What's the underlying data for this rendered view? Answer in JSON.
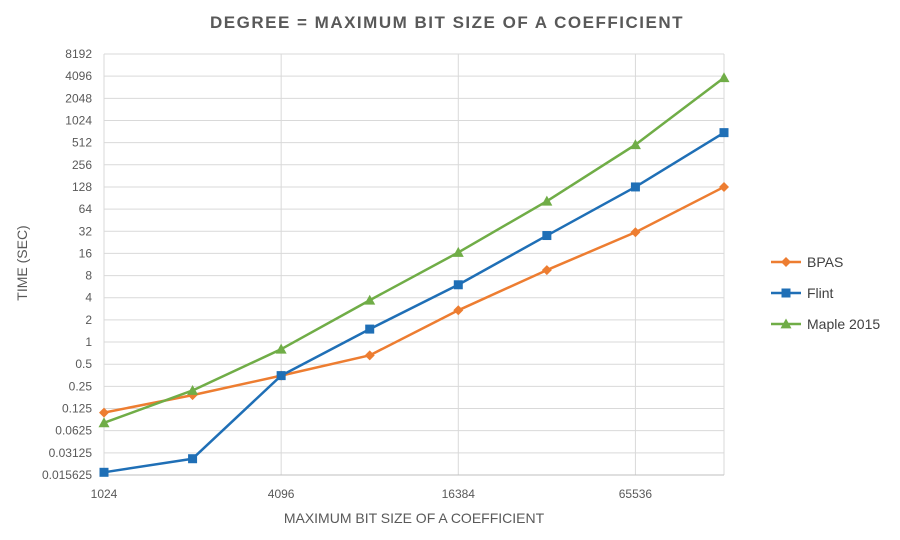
{
  "chart_data": {
    "type": "line",
    "title": "DEGREE = MAXIMUM BIT SIZE OF A COEFFICIENT",
    "xlabel": "MAXIMUM BIT SIZE OF A COEFFICIENT",
    "ylabel": "TIME (SEC)",
    "x_scale": "log2",
    "y_scale": "log2",
    "xlim": [
      1024,
      131072
    ],
    "ylim": [
      0.015625,
      8192
    ],
    "x_ticks": [
      "1024",
      "4096",
      "16384",
      "65536"
    ],
    "x_tick_values": [
      1024,
      4096,
      16384,
      65536
    ],
    "y_ticks": [
      "0.015625",
      "0.03125",
      "0.0625",
      "0.125",
      "0.25",
      "0.5",
      "1",
      "2",
      "4",
      "8",
      "16",
      "32",
      "64",
      "128",
      "256",
      "512",
      "1024",
      "2048",
      "4096",
      "8192"
    ],
    "y_tick_values": [
      0.015625,
      0.03125,
      0.0625,
      0.125,
      0.25,
      0.5,
      1,
      2,
      4,
      8,
      16,
      32,
      64,
      128,
      256,
      512,
      1024,
      2048,
      4096,
      8192
    ],
    "grid": "vertical",
    "legend_position": "right",
    "x": [
      1024,
      2048,
      4096,
      8192,
      16384,
      32768,
      65536,
      131072
    ],
    "series": [
      {
        "name": "BPAS",
        "color": "#ed7d31",
        "marker": "diamond",
        "values": [
          0.11,
          0.19,
          0.35,
          0.66,
          2.7,
          9.5,
          31,
          128
        ]
      },
      {
        "name": "Flint",
        "color": "#1f6fb6",
        "marker": "square",
        "values": [
          0.017,
          0.026,
          0.35,
          1.5,
          6,
          28,
          128,
          700
        ]
      },
      {
        "name": "Maple 2015",
        "color": "#70ad47",
        "marker": "triangle",
        "values": [
          0.08,
          0.22,
          0.8,
          3.7,
          16.5,
          82,
          480,
          3900
        ]
      }
    ]
  }
}
